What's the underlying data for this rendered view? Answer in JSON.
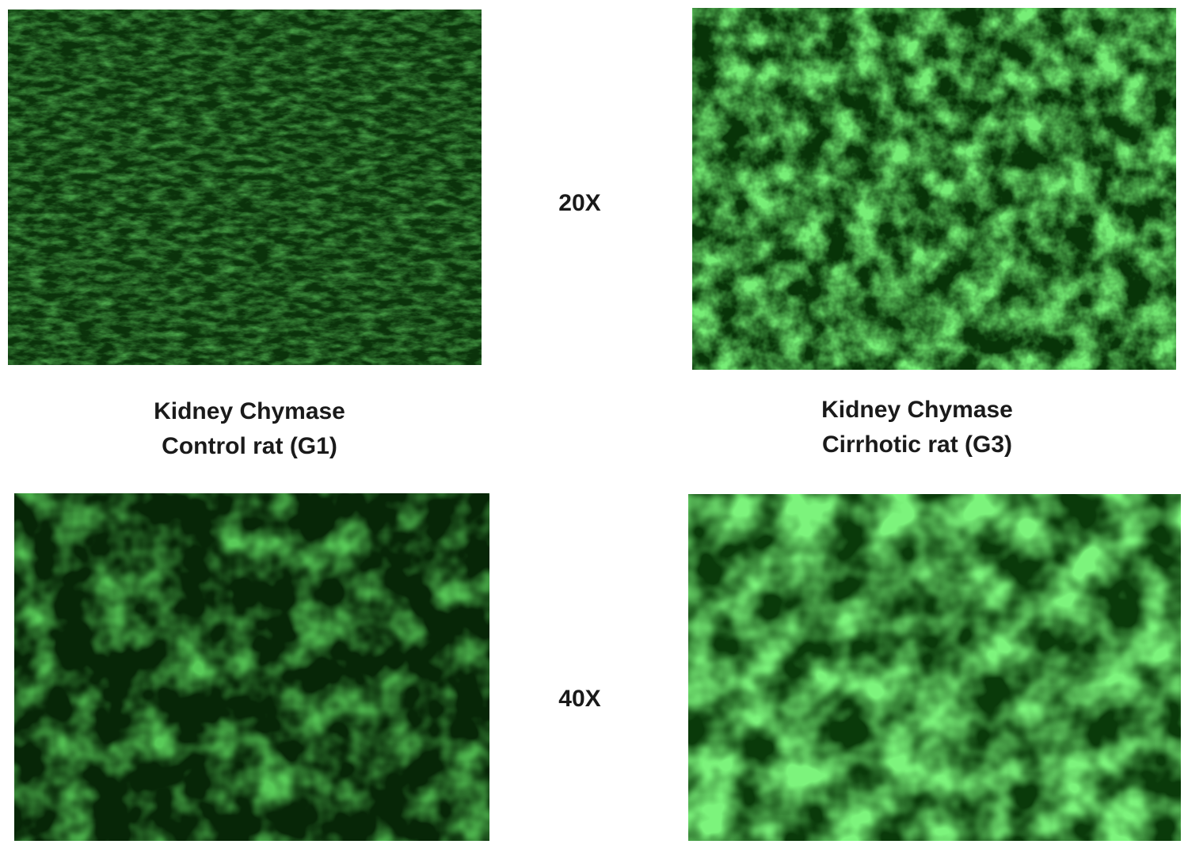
{
  "figure": {
    "magnifications": {
      "top": "20X",
      "bottom": "40X"
    },
    "groups": {
      "control": {
        "line1": "Kidney Chymase",
        "line2": "Control rat (G1)"
      },
      "cirrhotic": {
        "line1": "Kidney Chymase",
        "line2": "Cirrhotic rat (G3)"
      }
    },
    "colors": {
      "background_dark": "#062406",
      "stain_dim": "#1f7a1f",
      "stain_bright": "#3ee83e"
    }
  }
}
